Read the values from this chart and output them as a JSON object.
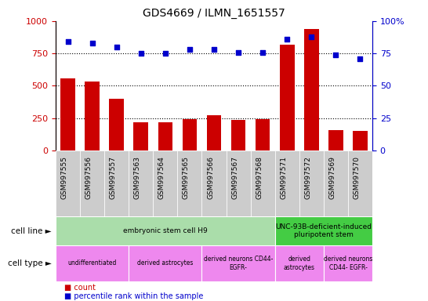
{
  "title": "GDS4669 / ILMN_1651557",
  "samples": [
    "GSM997555",
    "GSM997556",
    "GSM997557",
    "GSM997563",
    "GSM997564",
    "GSM997565",
    "GSM997566",
    "GSM997567",
    "GSM997568",
    "GSM997571",
    "GSM997572",
    "GSM997569",
    "GSM997570"
  ],
  "counts": [
    560,
    530,
    400,
    220,
    220,
    245,
    270,
    235,
    245,
    820,
    940,
    155,
    150
  ],
  "percentiles": [
    84,
    83,
    80,
    75,
    75,
    78,
    78,
    76,
    76,
    86,
    88,
    74,
    71
  ],
  "ylim_left": [
    0,
    1000
  ],
  "ylim_right": [
    0,
    100
  ],
  "yticks_left": [
    0,
    250,
    500,
    750,
    1000
  ],
  "yticks_right": [
    0,
    25,
    50,
    75,
    100
  ],
  "bar_color": "#cc0000",
  "dot_color": "#0000cc",
  "bg_color": "#ffffff",
  "sample_bg": "#cccccc",
  "cell_line_row": [
    {
      "label": "embryonic stem cell H9",
      "start": 0,
      "end": 9,
      "color": "#aaddaa"
    },
    {
      "label": "UNC-93B-deficient-induced\npluripotent stem",
      "start": 9,
      "end": 13,
      "color": "#44cc44"
    }
  ],
  "cell_type_row": [
    {
      "label": "undifferentiated",
      "start": 0,
      "end": 3,
      "color": "#ee88ee"
    },
    {
      "label": "derived astrocytes",
      "start": 3,
      "end": 6,
      "color": "#ee88ee"
    },
    {
      "label": "derived neurons CD44-\nEGFR-",
      "start": 6,
      "end": 9,
      "color": "#ee88ee"
    },
    {
      "label": "derived\nastrocytes",
      "start": 9,
      "end": 11,
      "color": "#ee88ee"
    },
    {
      "label": "derived neurons\nCD44- EGFR-",
      "start": 11,
      "end": 13,
      "color": "#ee88ee"
    }
  ],
  "legend_count_color": "#cc0000",
  "legend_dot_color": "#0000cc"
}
